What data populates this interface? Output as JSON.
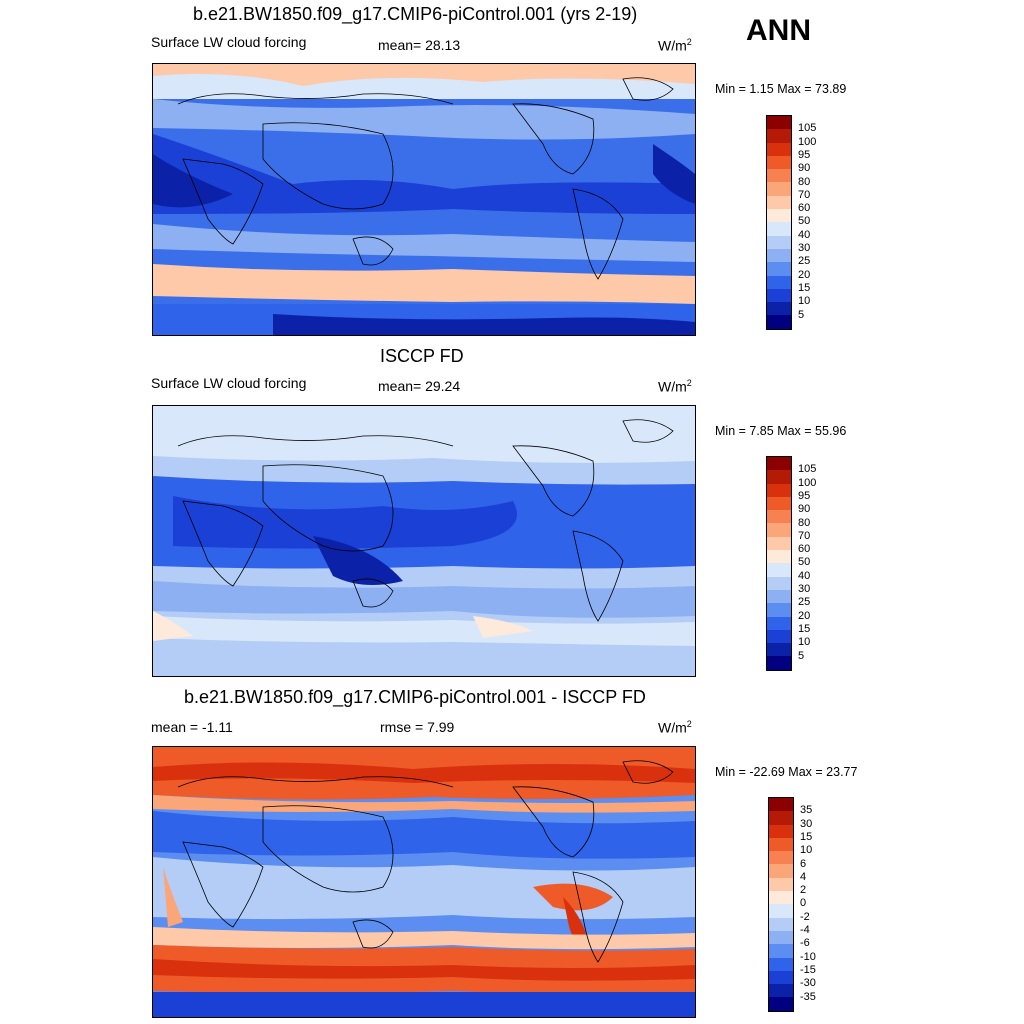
{
  "season": "ANN",
  "panels": [
    {
      "title": "b.e21.BW1850.f09_g17.CMIP6-piControl.001 (yrs 2-19)",
      "left_label": "Surface LW cloud forcing",
      "mid_label": "mean=  28.13",
      "units_base": "W/m",
      "units_sup": "2",
      "minmax": "Min =   1.15 Max =  73.89",
      "kind": "abs"
    },
    {
      "title": "ISCCP FD",
      "left_label": "Surface LW cloud forcing",
      "mid_label": "mean=  29.24",
      "units_base": "W/m",
      "units_sup": "2",
      "minmax": "Min =   7.85 Max =  55.96",
      "kind": "abs2"
    },
    {
      "title": "b.e21.BW1850.f09_g17.CMIP6-piControl.001 - ISCCP FD",
      "left_label": "mean =  -1.11",
      "mid_label": "rmse =   7.99",
      "units_base": "W/m",
      "units_sup": "2",
      "minmax": "Min = -22.69 Max =  23.77",
      "kind": "diff"
    }
  ],
  "colorbars": {
    "abs": {
      "labels": [
        "105",
        "100",
        "95",
        "90",
        "80",
        "70",
        "60",
        "50",
        "40",
        "30",
        "25",
        "20",
        "15",
        "10",
        "5"
      ],
      "colors": [
        "#8b0000",
        "#b41a05",
        "#d9310e",
        "#ee5a28",
        "#f78150",
        "#fba679",
        "#fdc9a8",
        "#feeadb",
        "#d8e8fa",
        "#b3cdf6",
        "#8cb0f2",
        "#5b8ef0",
        "#2e63ea",
        "#1a40d6",
        "#0b22a8",
        "#000080"
      ]
    },
    "diff": {
      "labels": [
        "35",
        "30",
        "15",
        "10",
        "6",
        "4",
        "2",
        "0",
        "-2",
        "-4",
        "-6",
        "-10",
        "-15",
        "-30",
        "-35"
      ],
      "colors": [
        "#8b0000",
        "#b41a05",
        "#d9310e",
        "#ee5a28",
        "#f78150",
        "#fba679",
        "#fdc9a8",
        "#feeadb",
        "#d8e8fa",
        "#b3cdf6",
        "#8cb0f2",
        "#5b8ef0",
        "#2e63ea",
        "#1a40d6",
        "#0b22a8",
        "#000080"
      ]
    }
  }
}
